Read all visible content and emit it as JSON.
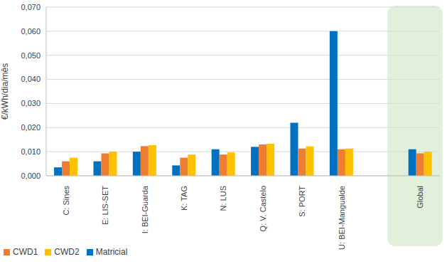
{
  "chart_data": {
    "type": "bar",
    "y_label": "€/kWh/dia/mês",
    "categories": [
      "C: Sines",
      "E: LIS-SET",
      "I: BEI-Guarda",
      "K: TAG",
      "N: LUS",
      "Q: V. Castelo",
      "S: PORT",
      "U: BEI-Mangualde",
      null,
      "Global"
    ],
    "series": [
      {
        "name": "Matricial",
        "color": "#0070c0",
        "values": [
          0.0035,
          0.006,
          0.01,
          0.0043,
          0.011,
          0.012,
          0.022,
          0.06,
          null,
          0.011
        ]
      },
      {
        "name": "CWD1",
        "color": "#ed7d31",
        "values": [
          0.006,
          0.0093,
          0.0123,
          0.0075,
          0.0088,
          0.013,
          0.0113,
          0.011,
          null,
          0.0093
        ]
      },
      {
        "name": "CWD2",
        "color": "#ffc000",
        "values": [
          0.0075,
          0.01,
          0.0127,
          0.0088,
          0.0097,
          0.0133,
          0.0122,
          0.0113,
          null,
          0.01
        ]
      }
    ],
    "ylim": [
      0,
      0.07
    ],
    "yticks": [
      {
        "value": 0,
        "label": "0,000"
      },
      {
        "value": 0.01,
        "label": "0,010"
      },
      {
        "value": 0.02,
        "label": "0,020"
      },
      {
        "value": 0.03,
        "label": "0,030"
      },
      {
        "value": 0.04,
        "label": "0,040"
      },
      {
        "value": 0.05,
        "label": "0,050"
      },
      {
        "value": 0.06,
        "label": "0,060"
      },
      {
        "value": 0.07,
        "label": "0,070"
      }
    ],
    "grid": true,
    "legend": "bottom"
  }
}
